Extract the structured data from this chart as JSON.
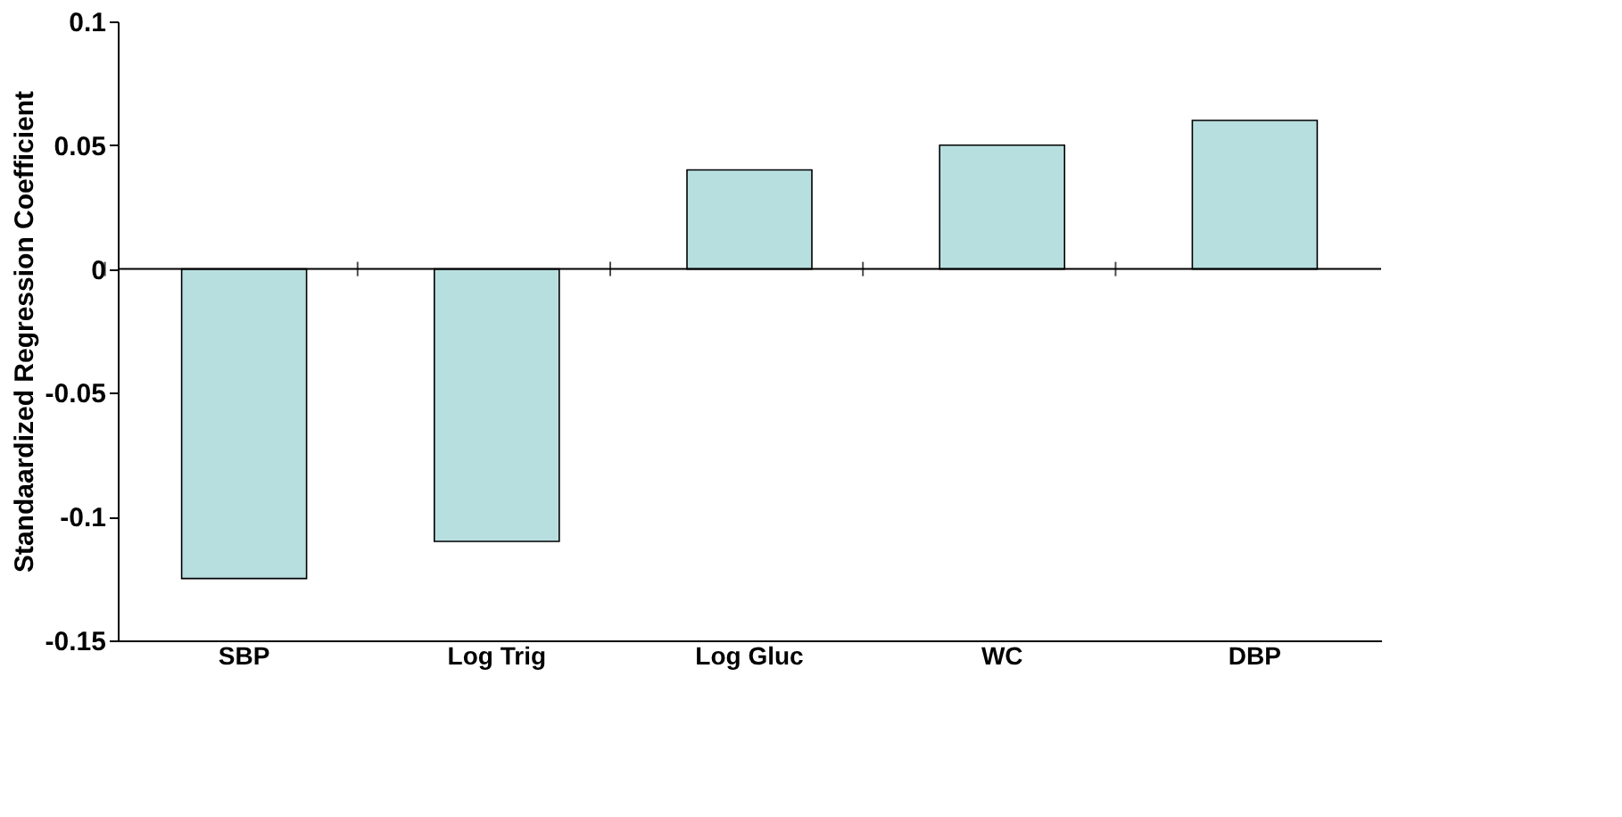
{
  "chart_data": {
    "type": "bar",
    "ylabel": "Standaardized Regression Coefficient",
    "categories": [
      "SBP",
      "Log Trig",
      "Log Gluc",
      "WC",
      "DBP"
    ],
    "values": [
      -0.125,
      -0.11,
      0.04,
      0.05,
      0.06
    ],
    "color": "#b8dfe0",
    "ylim": [
      -0.15,
      0.1
    ],
    "yticks": [
      -0.15,
      -0.1,
      -0.05,
      0,
      0.05,
      0.1
    ],
    "grid": false,
    "ref_lines": [
      {
        "axis": "y",
        "value": 0
      }
    ]
  }
}
